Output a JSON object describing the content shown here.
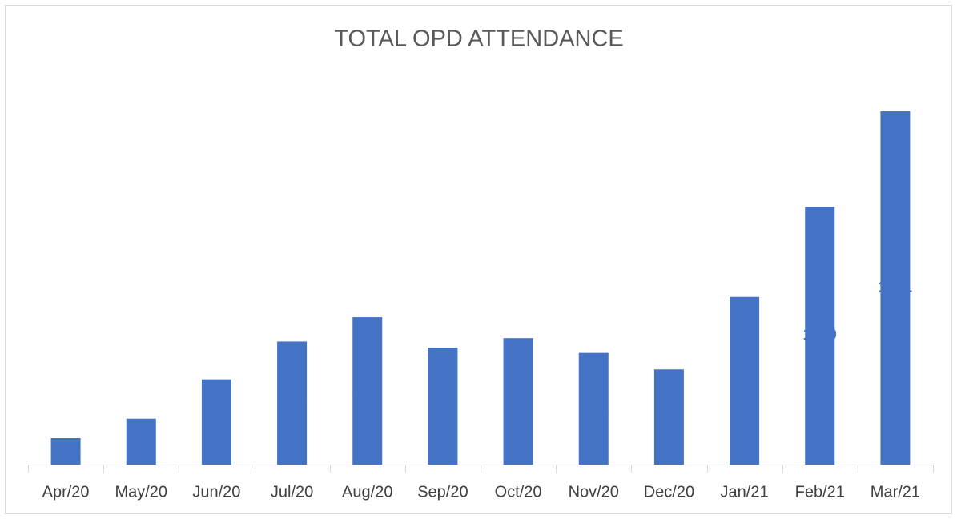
{
  "chart_data": {
    "type": "bar",
    "title": "TOTAL OPD ATTENDANCE",
    "categories": [
      "Apr/20",
      "May/20",
      "Jun/20",
      "Jul/20",
      "Aug/20",
      "Sep/20",
      "Oct/20",
      "Nov/20",
      "Dec/20",
      "Jan/21",
      "Feb/21",
      "Mar/21"
    ],
    "values": [
      125,
      217,
      403,
      582,
      697,
      553,
      598,
      528,
      450,
      793,
      1219,
      1671
    ],
    "color": "#4472c4",
    "ylim": [
      0,
      1800
    ]
  }
}
